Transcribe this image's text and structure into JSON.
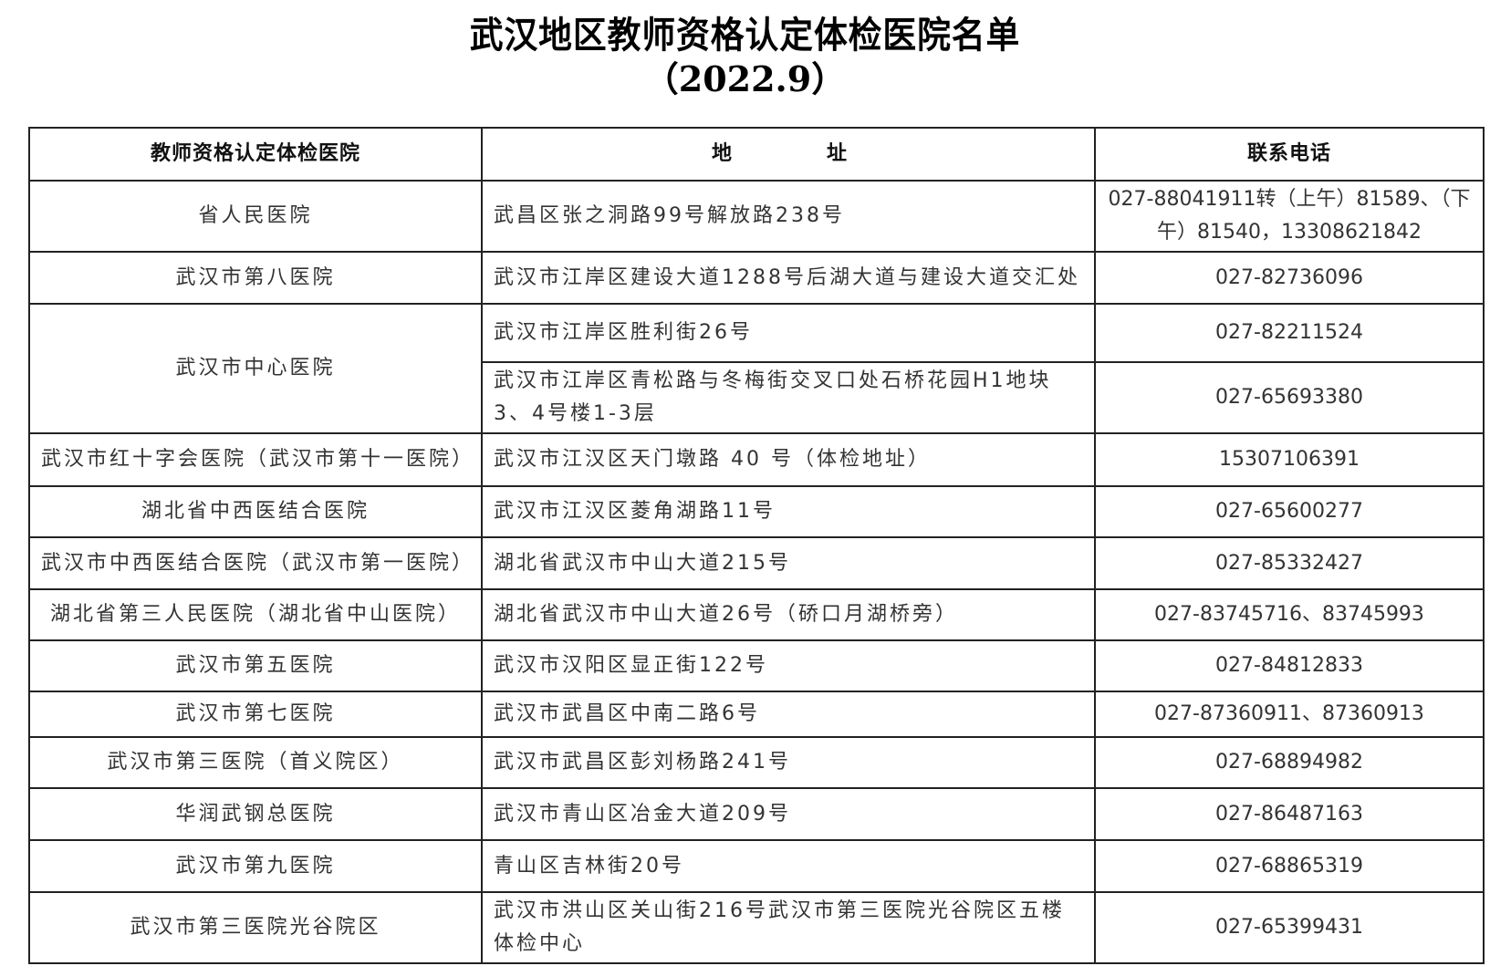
{
  "title": "武汉地区教师资格认定体检医院名单",
  "subtitle": "（2022.9）",
  "table": {
    "headers": [
      "教师资格认定体检医院",
      "地　　址",
      "联系电话"
    ],
    "rows": [
      {
        "hospital": "省人民医院",
        "entries": [
          {
            "address": "武昌区张之洞路99号解放路238号",
            "phone": "027-88041911转（上午）81589、（下午）81540，13308621842"
          }
        ]
      },
      {
        "hospital": "武汉市第八医院",
        "entries": [
          {
            "address": "武汉市江岸区建设大道1288号后湖大道与建设大道交汇处",
            "phone": "027-82736096"
          }
        ]
      },
      {
        "hospital": "武汉市中心医院",
        "entries": [
          {
            "address": "武汉市江岸区胜利街26号",
            "phone": "027-82211524"
          },
          {
            "address": "武汉市江岸区青松路与冬梅街交叉口处石桥花园H1地块3、4号楼1-3层",
            "phone": "027-65693380"
          }
        ]
      },
      {
        "hospital": "武汉市红十字会医院（武汉市第十一医院）",
        "entries": [
          {
            "address": "武汉市江汉区天门墩路 40 号（体检地址）",
            "phone": "15307106391"
          }
        ]
      },
      {
        "hospital": "湖北省中西医结合医院",
        "entries": [
          {
            "address": "武汉市江汉区菱角湖路11号",
            "phone": "027-65600277"
          }
        ]
      },
      {
        "hospital": "武汉市中西医结合医院（武汉市第一医院）",
        "entries": [
          {
            "address": "湖北省武汉市中山大道215号",
            "phone": "027-85332427"
          }
        ]
      },
      {
        "hospital": "湖北省第三人民医院（湖北省中山医院）",
        "entries": [
          {
            "address": "湖北省武汉市中山大道26号（硚口月湖桥旁）",
            "phone": "027-83745716、83745993"
          }
        ]
      },
      {
        "hospital": "武汉市第五医院",
        "entries": [
          {
            "address": "武汉市汉阳区显正街122号",
            "phone": "027-84812833"
          }
        ]
      },
      {
        "hospital": "武汉市第七医院",
        "entries": [
          {
            "address": "武汉市武昌区中南二路6号",
            "phone": "027-87360911、87360913"
          }
        ]
      },
      {
        "hospital": "武汉市第三医院（首义院区）",
        "entries": [
          {
            "address": "武汉市武昌区彭刘杨路241号",
            "phone": "027-68894982"
          }
        ]
      },
      {
        "hospital": "华润武钢总医院",
        "entries": [
          {
            "address": "武汉市青山区冶金大道209号",
            "phone": "027-86487163"
          }
        ]
      },
      {
        "hospital": "武汉市第九医院",
        "entries": [
          {
            "address": "青山区吉林街20号",
            "phone": "027-68865319"
          }
        ]
      },
      {
        "hospital": "武汉市第三医院光谷院区",
        "entries": [
          {
            "address": "武汉市洪山区关山街216号武汉市第三医院光谷院区五楼体检中心",
            "phone": "027-65399431"
          }
        ]
      }
    ]
  }
}
